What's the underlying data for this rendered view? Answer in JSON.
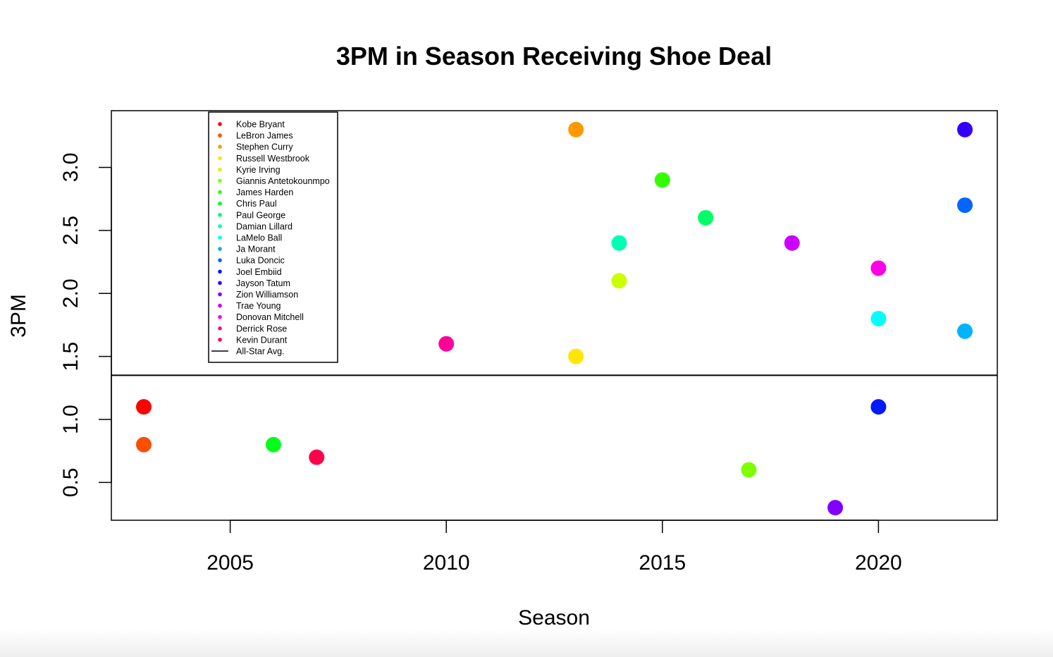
{
  "chart_data": {
    "type": "scatter",
    "title": "3PM in Season Receiving Shoe Deal",
    "xlabel": "Season",
    "ylabel": "3PM",
    "xlim": [
      2002.25,
      2022.75
    ],
    "ylim": [
      0.2,
      3.45
    ],
    "x_ticks": [
      2005,
      2010,
      2015,
      2020
    ],
    "y_ticks": [
      0.5,
      1.0,
      1.5,
      2.0,
      2.5,
      3.0
    ],
    "y_tick_labels": [
      "0.5",
      "1.0",
      "1.5",
      "2.0",
      "2.5",
      "3.0"
    ],
    "grid": false,
    "legend_position": "top-left",
    "series": [
      {
        "name": "Kobe Bryant",
        "color": "#ff0000",
        "x": 2003,
        "y": 1.1
      },
      {
        "name": "LeBron James",
        "color": "#ff4d00",
        "x": 2003,
        "y": 0.8
      },
      {
        "name": "Stephen Curry",
        "color": "#ff9900",
        "x": 2013,
        "y": 3.3
      },
      {
        "name": "Russell Westbrook",
        "color": "#ffe600",
        "x": 2013,
        "y": 1.5
      },
      {
        "name": "Kyrie Irving",
        "color": "#ccff00",
        "x": 2014,
        "y": 2.1
      },
      {
        "name": "Giannis Antetokounmpo",
        "color": "#80ff00",
        "x": 2017,
        "y": 0.6
      },
      {
        "name": "James Harden",
        "color": "#33ff00",
        "x": 2015,
        "y": 2.9
      },
      {
        "name": "Chris Paul",
        "color": "#00ff1a",
        "x": 2006,
        "y": 0.8
      },
      {
        "name": "Paul George",
        "color": "#00ff66",
        "x": 2016,
        "y": 2.6
      },
      {
        "name": "Damian Lillard",
        "color": "#00ffb3",
        "x": 2014,
        "y": 2.4
      },
      {
        "name": "LaMelo Ball",
        "color": "#00ffff",
        "x": 2020,
        "y": 1.8
      },
      {
        "name": "Ja Morant",
        "color": "#00b3ff",
        "x": 2022,
        "y": 1.7
      },
      {
        "name": "Luka Doncic",
        "color": "#0066ff",
        "x": 2022,
        "y": 2.7
      },
      {
        "name": "Joel Embiid",
        "color": "#001aff",
        "x": 2020,
        "y": 1.1
      },
      {
        "name": "Jayson Tatum",
        "color": "#3300ff",
        "x": 2022,
        "y": 3.3
      },
      {
        "name": "Zion Williamson",
        "color": "#8000ff",
        "x": 2019,
        "y": 0.3
      },
      {
        "name": "Trae Young",
        "color": "#cc00ff",
        "x": 2018,
        "y": 2.4
      },
      {
        "name": "Donovan Mitchell",
        "color": "#ff00e6",
        "x": 2020,
        "y": 2.2
      },
      {
        "name": "Derrick Rose",
        "color": "#ff0099",
        "x": 2010,
        "y": 1.6
      },
      {
        "name": "Kevin Durant",
        "color": "#ff004d",
        "x": 2007,
        "y": 0.7
      }
    ],
    "reference_line": {
      "name": "All-Star Avg.",
      "y": 1.35,
      "color": "#000000"
    }
  }
}
